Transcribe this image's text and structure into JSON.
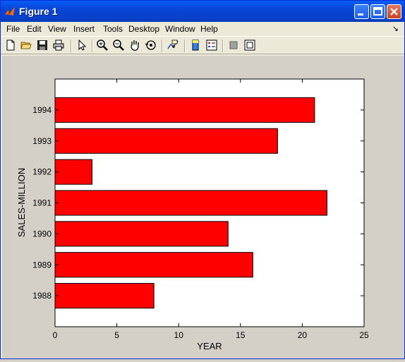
{
  "window": {
    "title": "Figure 1"
  },
  "menu": {
    "items": [
      "File",
      "Edit",
      "View",
      "Insert",
      "Tools",
      "Desktop",
      "Window",
      "Help"
    ]
  },
  "toolbar": {
    "tools": [
      "new-file-icon",
      "open-folder-icon",
      "save-icon",
      "print-icon",
      "pointer-icon",
      "zoom-in-icon",
      "zoom-out-icon",
      "pan-hand-icon",
      "rotate-3d-icon",
      "data-cursor-icon",
      "colorbar-icon",
      "legend-icon",
      "hide-plot-tools-icon",
      "show-plot-tools-icon"
    ]
  },
  "chart_data": {
    "type": "bar",
    "orientation": "horizontal",
    "categories": [
      "1988",
      "1989",
      "1990",
      "1991",
      "1992",
      "1993",
      "1994"
    ],
    "values": [
      8,
      16,
      14,
      22,
      3,
      18,
      21
    ],
    "title": "",
    "xlabel": "YEAR",
    "ylabel": "SALES-MILLION",
    "xlim": [
      0,
      25
    ],
    "xticks": [
      0,
      5,
      10,
      15,
      20,
      25
    ],
    "bar_color": "#ff0000",
    "grid": false
  }
}
